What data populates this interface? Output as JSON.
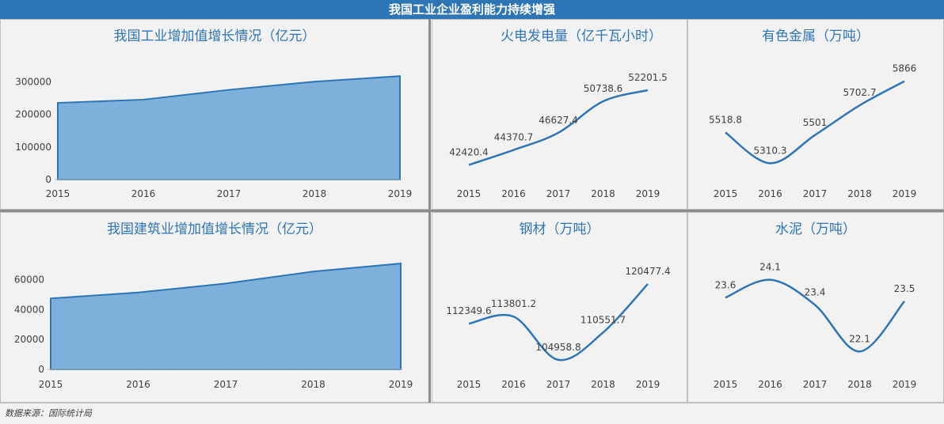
{
  "banner_title": "我国工业企业盈利能力持续增强",
  "footer_text": "数据来源：国际统计局",
  "colors": {
    "banner": "#2e75b6",
    "area_fill": "#7eb0dc",
    "line": "#2e75b6",
    "title": "#2e75b6"
  },
  "chart_data": [
    {
      "id": "industry",
      "type": "area",
      "title": "我国工业增加值增长情况（亿元）",
      "x": [
        "2015",
        "2016",
        "2017",
        "2018",
        "2019"
      ],
      "values": [
        235000,
        245000,
        275000,
        300000,
        317000
      ],
      "yticks": [
        0,
        100000,
        200000,
        300000
      ],
      "ylim": [
        0,
        320000
      ],
      "grid": false
    },
    {
      "id": "thermal",
      "type": "line",
      "title": "火电发电量（亿千瓦小时）",
      "x": [
        "2015",
        "2016",
        "2017",
        "2018",
        "2019"
      ],
      "values": [
        42420.4,
        44370.7,
        46627.4,
        50738.6,
        52201.5
      ],
      "labels": [
        "42420.4",
        "44370.7",
        "46627.4",
        "50738.6",
        "52201.5"
      ],
      "ylim": [
        40500,
        55000
      ],
      "grid": false
    },
    {
      "id": "nonferrous",
      "type": "line",
      "title": "有色金属（万吨）",
      "x": [
        "2015",
        "2016",
        "2017",
        "2018",
        "2019"
      ],
      "values": [
        5518.8,
        5310.3,
        5501,
        5702.7,
        5866
      ],
      "labels": [
        "5518.8",
        "5310.3",
        "5501",
        "5702.7",
        "5866"
      ],
      "ylim": [
        5200,
        5950
      ],
      "grid": false
    },
    {
      "id": "construction",
      "type": "area",
      "title": "我国建筑业增加值增长情况（亿元）",
      "x": [
        "2015",
        "2016",
        "2017",
        "2018",
        "2019"
      ],
      "values": [
        47500,
        51500,
        57500,
        65500,
        70900
      ],
      "yticks": [
        0,
        20000,
        40000,
        60000
      ],
      "ylim": [
        0,
        72000
      ],
      "grid": false
    },
    {
      "id": "steel",
      "type": "line",
      "title": "钢材（万吨）",
      "x": [
        "2015",
        "2016",
        "2017",
        "2018",
        "2019"
      ],
      "values": [
        112349.6,
        113801.2,
        104958.8,
        110551.7,
        120477.4
      ],
      "labels": [
        "112349.6",
        "113801.2",
        "104958.8",
        "110551.7",
        "120477.4"
      ],
      "ylim": [
        103000,
        125000
      ],
      "grid": false
    },
    {
      "id": "cement",
      "type": "line",
      "title": "水泥（万吨）",
      "x": [
        "2015",
        "2016",
        "2017",
        "2018",
        "2019"
      ],
      "values": [
        23.6,
        24.1,
        23.4,
        22.1,
        23.5
      ],
      "labels": [
        "23.6",
        "24.1",
        "23.4",
        "22.1",
        "23.5"
      ],
      "ylim": [
        21.6,
        24.6
      ],
      "grid": false
    }
  ]
}
